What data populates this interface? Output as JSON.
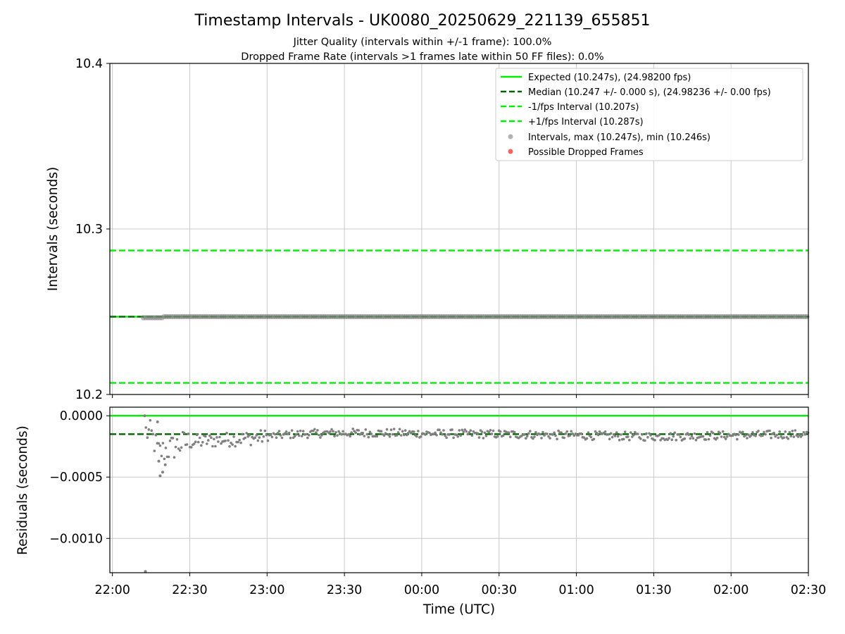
{
  "colors": {
    "expected": "#00ee00",
    "median": "#006400",
    "fps_interval": "#00ee00",
    "intervals_points": "#808080",
    "dropped": "#ef5350",
    "grid": "#c8c8c8"
  },
  "chart_data": {
    "type": "scatter",
    "title": "Timestamp Intervals - UK0080_20250629_221139_655851",
    "subtitle_lines": [
      "Jitter Quality (intervals within +/-1 frame): 100.0%",
      "Dropped Frame Rate (intervals >1 frames late within 50 FF files): 0.0%"
    ],
    "xlabel": "Time (UTC)",
    "x_ticks": [
      "22:00",
      "22:30",
      "23:00",
      "23:30",
      "00:00",
      "00:30",
      "01:00",
      "01:30",
      "02:00",
      "02:30"
    ],
    "x_range_minutes_from_2200": [
      -1,
      270
    ],
    "grid": true,
    "panels": [
      {
        "name": "intervals",
        "ylabel": "Intervals (seconds)",
        "ylim": [
          10.2,
          10.4
        ],
        "y_ticks": [
          "10.2",
          "10.3",
          "10.4"
        ],
        "expected": 10.247,
        "median": 10.247,
        "minus_fps": 10.207,
        "plus_fps": 10.287,
        "intervals_min": 10.246,
        "intervals_max": 10.247,
        "start_minute": 12,
        "legend_position": "upper right",
        "legend": [
          "Expected (10.247s), (24.98200 fps)",
          "Median (10.247 +/- 0.000 s), (24.98236 +/- 0.00 fps)",
          "-1/fps Interval (10.207s)",
          "+1/fps Interval (10.287s)",
          "Intervals, max (10.247s), min (10.246s)",
          "Possible Dropped Frames"
        ]
      },
      {
        "name": "residuals",
        "ylabel": "Residuals (seconds)",
        "ylim": [
          -0.00128,
          7e-05
        ],
        "y_ticks": [
          "0.0000",
          "−0.0005",
          "−0.0010"
        ],
        "expected_residual": 0.0,
        "median_residual": -0.00015,
        "residual_trend": [
          {
            "minute": 12,
            "value": -0.00012
          },
          {
            "minute": 15,
            "value": -0.00015
          },
          {
            "minute": 18,
            "value": -0.0003
          },
          {
            "minute": 22,
            "value": -0.00027
          },
          {
            "minute": 28,
            "value": -0.00022
          },
          {
            "minute": 40,
            "value": -0.0002
          },
          {
            "minute": 55,
            "value": -0.00018
          },
          {
            "minute": 70,
            "value": -0.00015
          },
          {
            "minute": 85,
            "value": -0.00014
          },
          {
            "minute": 100,
            "value": -0.00014
          },
          {
            "minute": 150,
            "value": -0.00015
          },
          {
            "minute": 180,
            "value": -0.00016
          },
          {
            "minute": 210,
            "value": -0.00017
          },
          {
            "minute": 240,
            "value": -0.00016
          },
          {
            "minute": 270,
            "value": -0.00015
          }
        ],
        "outliers": [
          {
            "minute": 12.5,
            "value": 0.0
          },
          {
            "minute": 12.8,
            "value": -0.00127
          },
          {
            "minute": 18.5,
            "value": -0.00049
          },
          {
            "minute": 19.5,
            "value": -0.00046
          },
          {
            "minute": 20.5,
            "value": -0.0004
          },
          {
            "minute": 18.0,
            "value": -0.00037
          },
          {
            "minute": 17.5,
            "value": -5e-05
          }
        ]
      }
    ]
  }
}
